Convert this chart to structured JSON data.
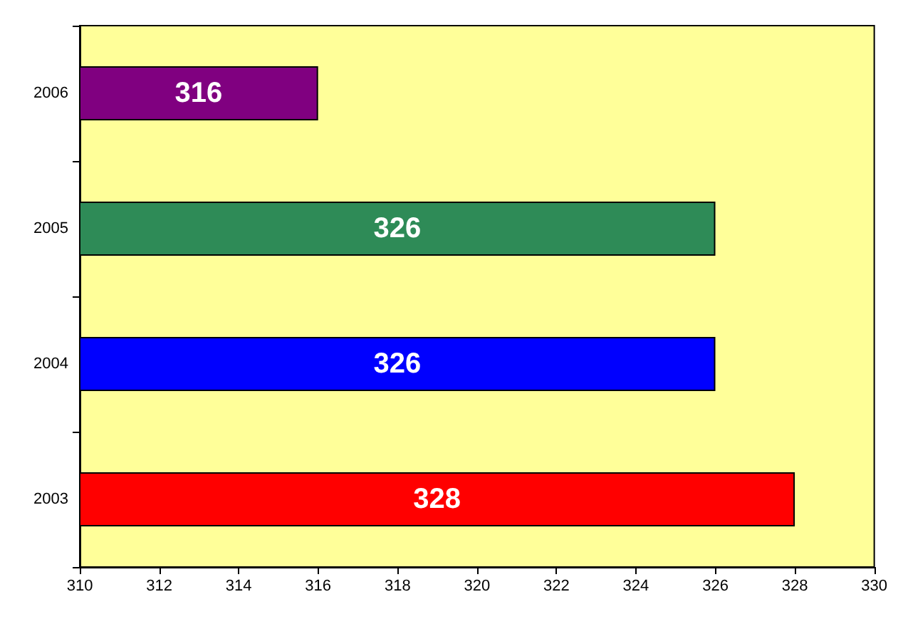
{
  "chart_data": {
    "type": "bar",
    "orientation": "horizontal",
    "categories": [
      "2006",
      "2005",
      "2004",
      "2003"
    ],
    "values": [
      316,
      326,
      326,
      328
    ],
    "colors": [
      "#800080",
      "#2e8b57",
      "#0000ff",
      "#ff0000"
    ],
    "xlim": [
      310,
      330
    ],
    "xticks": [
      310,
      312,
      314,
      316,
      318,
      320,
      322,
      324,
      326,
      328,
      330
    ],
    "data_labels": true
  }
}
